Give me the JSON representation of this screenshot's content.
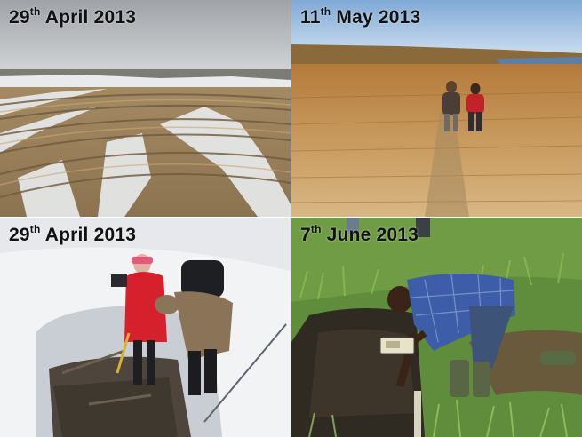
{
  "panels": [
    {
      "day": "29",
      "suffix": "th",
      "rest": " April 2013"
    },
    {
      "day": "11",
      "suffix": "th",
      "rest": " May 2013"
    },
    {
      "day": "29",
      "suffix": "th",
      "rest": " April 2013"
    },
    {
      "day": "7",
      "suffix": "th",
      "rest": " June 2013"
    }
  ]
}
